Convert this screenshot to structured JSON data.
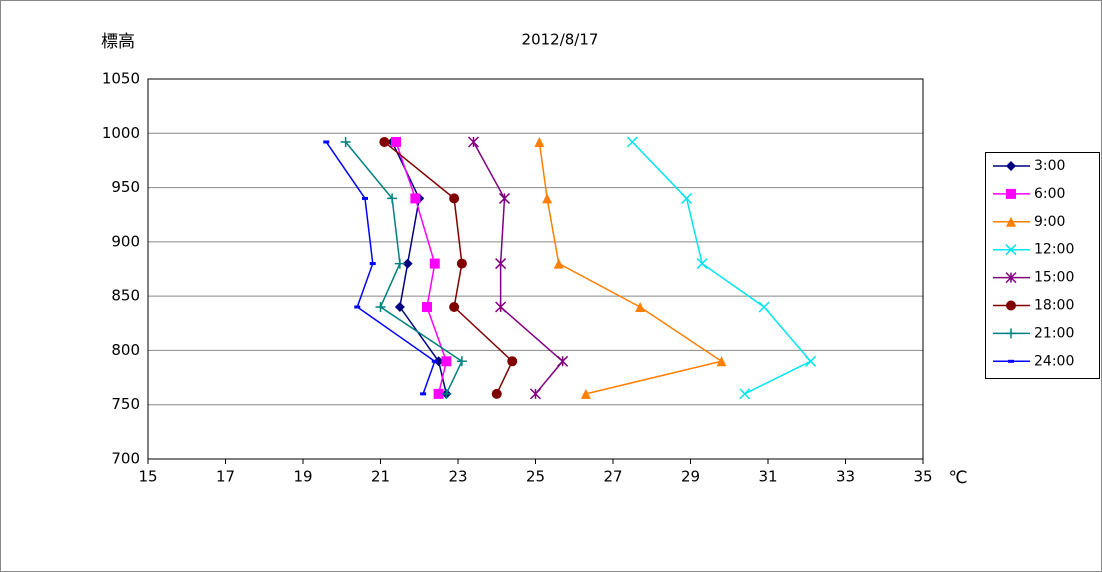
{
  "chart_data": {
    "type": "line",
    "title": "2012/8/17",
    "ylabel": "標高",
    "xlabel": "℃",
    "y": [
      992,
      940,
      880,
      840,
      790,
      760
    ],
    "xlim": [
      15,
      35
    ],
    "xticks": [
      15,
      17,
      19,
      21,
      23,
      25,
      27,
      29,
      31,
      33,
      35
    ],
    "ylim": [
      700,
      1050
    ],
    "yticks": [
      700,
      750,
      800,
      850,
      900,
      950,
      1000,
      1050
    ],
    "grid": true,
    "legend": "right",
    "series": [
      {
        "name": "3:00",
        "color": "#000080",
        "marker": "diamond",
        "values": [
          21.3,
          22.0,
          21.7,
          21.5,
          22.5,
          22.7
        ]
      },
      {
        "name": "6:00",
        "color": "#ff00ff",
        "marker": "square",
        "values": [
          21.4,
          21.9,
          22.4,
          22.2,
          22.7,
          22.5
        ]
      },
      {
        "name": "9:00",
        "color": "#ff7f00",
        "marker": "triangle",
        "values": [
          25.1,
          25.3,
          25.6,
          27.7,
          29.8,
          26.3
        ]
      },
      {
        "name": "12:00",
        "color": "#00e5ee",
        "marker": "x",
        "values": [
          27.5,
          28.9,
          29.3,
          30.9,
          32.1,
          30.4
        ]
      },
      {
        "name": "15:00",
        "color": "#800080",
        "marker": "star",
        "values": [
          23.4,
          24.2,
          24.1,
          24.1,
          25.7,
          25.0
        ]
      },
      {
        "name": "18:00",
        "color": "#800000",
        "marker": "circle",
        "values": [
          21.1,
          22.9,
          23.1,
          22.9,
          24.4,
          24.0
        ]
      },
      {
        "name": "21:00",
        "color": "#008080",
        "marker": "plus",
        "values": [
          20.1,
          21.3,
          21.5,
          21.0,
          23.1,
          22.7
        ]
      },
      {
        "name": "24:00",
        "color": "#0000ff",
        "marker": "dash",
        "values": [
          19.6,
          20.6,
          20.8,
          20.4,
          22.4,
          22.1
        ]
      }
    ]
  }
}
